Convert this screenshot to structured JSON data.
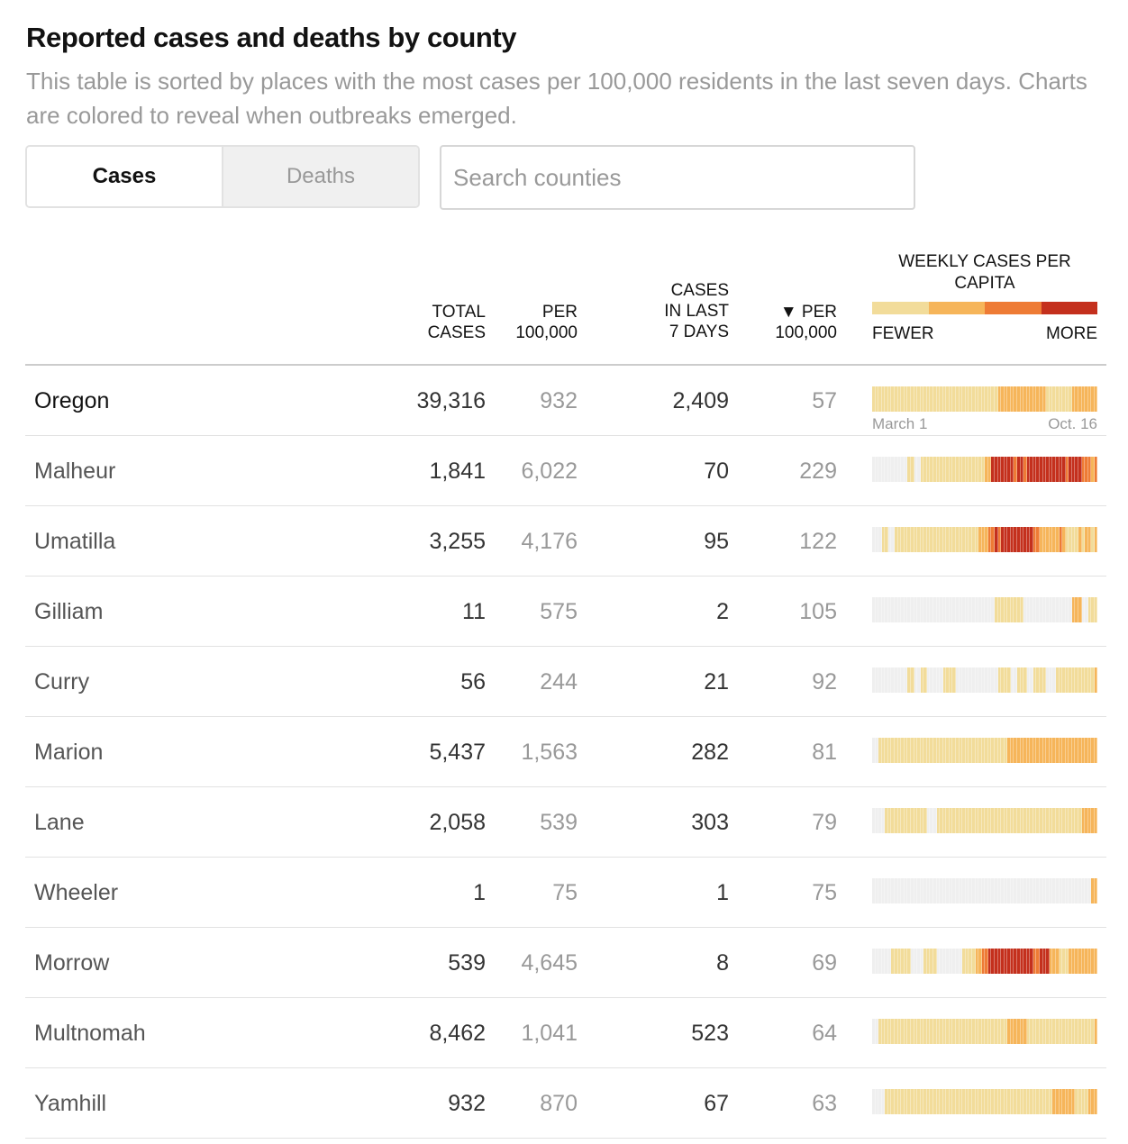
{
  "title": "Reported cases and deaths by county",
  "subtitle": "This table is sorted by places with the most cases per 100,000 residents in the last seven days. Charts are colored to reveal when outbreaks emerged.",
  "toggle": {
    "cases_label": "Cases",
    "deaths_label": "Deaths",
    "active": "Cases"
  },
  "search": {
    "placeholder": "Search counties",
    "value": ""
  },
  "headers": {
    "total_l1": "TOTAL",
    "total_l2": "CASES",
    "per_l1": "PER",
    "per_l2": "100,000",
    "last7_l1": "CASES",
    "last7_l2": "IN LAST",
    "last7_l3": "7 DAYS",
    "per7_l1": "▼ PER",
    "per7_l2": "100,000",
    "weekly_title": "WEEKLY CASES PER CAPITA",
    "fewer": "FEWER",
    "more": "MORE"
  },
  "colors": {
    "none": "#efefef",
    "level1": "#f2dc9a",
    "level2": "#f6b55a",
    "level3": "#ee7b35",
    "level4": "#c4301d"
  },
  "axis": {
    "start": "March 1",
    "end": "Oct. 16"
  },
  "rows": [
    {
      "name": "Oregon",
      "total": "39,316",
      "per": "932",
      "last7": "2,409",
      "per7": "57",
      "weeks": [
        1,
        1,
        1,
        1,
        1,
        1,
        1,
        1,
        1,
        1,
        1,
        1,
        1,
        1,
        1,
        1,
        1,
        1,
        1,
        1,
        1,
        1,
        1,
        1,
        1,
        1,
        1,
        1,
        1,
        1,
        1,
        1,
        1,
        1,
        1,
        1,
        1,
        1,
        1,
        2,
        2,
        2,
        2,
        2,
        2,
        2,
        2,
        2,
        2,
        2,
        2,
        2,
        2,
        2,
        1,
        1,
        1,
        1,
        1,
        1,
        1,
        1,
        2,
        2,
        2,
        2,
        2,
        2,
        2,
        2
      ]
    },
    {
      "name": "Malheur",
      "total": "1,841",
      "per": "6,022",
      "last7": "70",
      "per7": "229",
      "weeks": [
        0,
        0,
        0,
        0,
        0,
        0,
        0,
        0,
        0,
        0,
        0,
        1,
        1,
        0,
        0,
        1,
        1,
        1,
        1,
        1,
        1,
        1,
        1,
        1,
        1,
        1,
        1,
        1,
        1,
        1,
        1,
        1,
        1,
        1,
        1,
        2,
        2,
        4,
        4,
        4,
        4,
        4,
        4,
        4,
        3,
        4,
        4,
        3,
        4,
        4,
        4,
        4,
        4,
        4,
        4,
        4,
        4,
        4,
        4,
        4,
        3,
        4,
        4,
        4,
        4,
        3,
        3,
        3,
        2,
        3
      ]
    },
    {
      "name": "Umatilla",
      "total": "3,255",
      "per": "4,176",
      "last7": "95",
      "per7": "122",
      "weeks": [
        0,
        0,
        0,
        1,
        1,
        0,
        0,
        1,
        1,
        1,
        1,
        1,
        1,
        1,
        1,
        1,
        1,
        1,
        1,
        1,
        1,
        1,
        1,
        1,
        1,
        1,
        1,
        1,
        1,
        1,
        1,
        1,
        1,
        2,
        2,
        2,
        3,
        3,
        4,
        3,
        4,
        4,
        4,
        4,
        4,
        4,
        4,
        4,
        4,
        4,
        3,
        3,
        2,
        2,
        2,
        2,
        2,
        2,
        3,
        2,
        1,
        1,
        1,
        1,
        2,
        1,
        2,
        2,
        1,
        2
      ]
    },
    {
      "name": "Gilliam",
      "total": "11",
      "per": "575",
      "last7": "2",
      "per7": "105",
      "weeks": [
        0,
        0,
        0,
        0,
        0,
        0,
        0,
        0,
        0,
        0,
        0,
        0,
        0,
        0,
        0,
        0,
        0,
        0,
        0,
        0,
        0,
        0,
        0,
        0,
        0,
        0,
        0,
        0,
        0,
        0,
        0,
        0,
        0,
        0,
        0,
        0,
        0,
        0,
        1,
        1,
        1,
        1,
        1,
        1,
        1,
        1,
        1,
        0,
        0,
        0,
        0,
        0,
        0,
        0,
        0,
        0,
        0,
        0,
        0,
        0,
        0,
        0,
        2,
        2,
        2,
        0,
        0,
        1,
        1,
        1
      ]
    },
    {
      "name": "Curry",
      "total": "56",
      "per": "244",
      "last7": "21",
      "per7": "92",
      "weeks": [
        0,
        0,
        0,
        0,
        0,
        0,
        0,
        0,
        0,
        0,
        0,
        1,
        1,
        0,
        0,
        1,
        1,
        0,
        0,
        0,
        0,
        0,
        1,
        1,
        1,
        1,
        0,
        0,
        0,
        0,
        0,
        0,
        0,
        0,
        0,
        0,
        0,
        0,
        0,
        1,
        1,
        1,
        1,
        0,
        0,
        1,
        1,
        1,
        0,
        0,
        1,
        1,
        1,
        1,
        0,
        0,
        0,
        1,
        1,
        1,
        1,
        1,
        1,
        1,
        1,
        1,
        1,
        1,
        1,
        2
      ]
    },
    {
      "name": "Marion",
      "total": "5,437",
      "per": "1,563",
      "last7": "282",
      "per7": "81",
      "weeks": [
        0,
        0,
        1,
        1,
        1,
        1,
        1,
        1,
        1,
        1,
        1,
        1,
        1,
        1,
        1,
        1,
        1,
        1,
        1,
        1,
        1,
        1,
        1,
        1,
        1,
        1,
        1,
        1,
        1,
        1,
        1,
        1,
        1,
        1,
        1,
        1,
        1,
        1,
        1,
        1,
        1,
        1,
        2,
        2,
        2,
        2,
        2,
        2,
        2,
        2,
        2,
        2,
        2,
        2,
        2,
        2,
        2,
        2,
        2,
        2,
        2,
        2,
        2,
        2,
        2,
        2,
        2,
        2,
        2,
        2
      ]
    },
    {
      "name": "Lane",
      "total": "2,058",
      "per": "539",
      "last7": "303",
      "per7": "79",
      "weeks": [
        0,
        0,
        0,
        0,
        1,
        1,
        1,
        1,
        1,
        1,
        1,
        1,
        1,
        1,
        1,
        1,
        1,
        0,
        0,
        0,
        1,
        1,
        1,
        1,
        1,
        1,
        1,
        1,
        1,
        1,
        1,
        1,
        1,
        1,
        1,
        1,
        1,
        1,
        1,
        1,
        1,
        1,
        1,
        1,
        1,
        1,
        1,
        1,
        1,
        1,
        1,
        1,
        1,
        1,
        1,
        1,
        1,
        1,
        1,
        1,
        1,
        1,
        1,
        1,
        1,
        2,
        2,
        2,
        2,
        2
      ]
    },
    {
      "name": "Wheeler",
      "total": "1",
      "per": "75",
      "last7": "1",
      "per7": "75",
      "weeks": [
        0,
        0,
        0,
        0,
        0,
        0,
        0,
        0,
        0,
        0,
        0,
        0,
        0,
        0,
        0,
        0,
        0,
        0,
        0,
        0,
        0,
        0,
        0,
        0,
        0,
        0,
        0,
        0,
        0,
        0,
        0,
        0,
        0,
        0,
        0,
        0,
        0,
        0,
        0,
        0,
        0,
        0,
        0,
        0,
        0,
        0,
        0,
        0,
        0,
        0,
        0,
        0,
        0,
        0,
        0,
        0,
        0,
        0,
        0,
        0,
        0,
        0,
        0,
        0,
        0,
        0,
        0,
        0,
        2,
        2
      ]
    },
    {
      "name": "Morrow",
      "total": "539",
      "per": "4,645",
      "last7": "8",
      "per7": "69",
      "weeks": [
        0,
        0,
        0,
        0,
        0,
        0,
        1,
        1,
        1,
        1,
        1,
        1,
        0,
        0,
        0,
        0,
        1,
        1,
        1,
        1,
        0,
        0,
        0,
        0,
        0,
        0,
        0,
        0,
        1,
        1,
        1,
        1,
        2,
        2,
        3,
        3,
        4,
        4,
        4,
        4,
        4,
        4,
        4,
        4,
        4,
        4,
        4,
        4,
        4,
        4,
        3,
        3,
        4,
        4,
        4,
        2,
        2,
        2,
        1,
        1,
        1,
        2,
        2,
        2,
        2,
        2,
        2,
        2,
        2,
        2
      ]
    },
    {
      "name": "Multnomah",
      "total": "8,462",
      "per": "1,041",
      "last7": "523",
      "per7": "64",
      "weeks": [
        0,
        0,
        1,
        1,
        1,
        1,
        1,
        1,
        1,
        1,
        1,
        1,
        1,
        1,
        1,
        1,
        1,
        1,
        1,
        1,
        1,
        1,
        1,
        1,
        1,
        1,
        1,
        1,
        1,
        1,
        1,
        1,
        1,
        1,
        1,
        1,
        1,
        1,
        1,
        1,
        1,
        1,
        2,
        2,
        2,
        2,
        2,
        2,
        1,
        1,
        1,
        1,
        1,
        1,
        1,
        1,
        1,
        1,
        1,
        1,
        1,
        1,
        1,
        1,
        1,
        1,
        1,
        1,
        1,
        2
      ]
    },
    {
      "name": "Yamhill",
      "total": "932",
      "per": "870",
      "last7": "67",
      "per7": "63",
      "weeks": [
        0,
        0,
        0,
        0,
        1,
        1,
        1,
        1,
        1,
        1,
        1,
        1,
        1,
        1,
        1,
        1,
        1,
        1,
        1,
        1,
        1,
        1,
        1,
        1,
        1,
        1,
        1,
        1,
        1,
        1,
        1,
        1,
        1,
        1,
        1,
        1,
        1,
        1,
        1,
        1,
        1,
        1,
        1,
        1,
        1,
        1,
        1,
        1,
        1,
        1,
        1,
        1,
        1,
        1,
        1,
        1,
        2,
        2,
        2,
        2,
        2,
        2,
        2,
        1,
        1,
        1,
        1,
        2,
        2,
        2
      ]
    }
  ]
}
